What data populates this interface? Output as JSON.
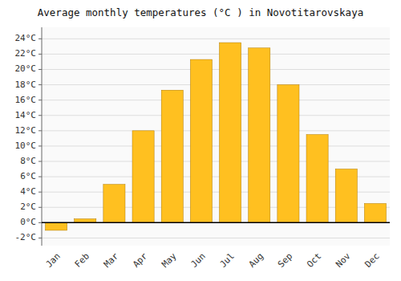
{
  "chart_data": {
    "type": "bar",
    "title": "Average monthly temperatures (°C ) in Novotitarovskaya",
    "categories": [
      "Jan",
      "Feb",
      "Mar",
      "Apr",
      "May",
      "Jun",
      "Jul",
      "Aug",
      "Sep",
      "Oct",
      "Nov",
      "Dec"
    ],
    "values": [
      -1.0,
      0.5,
      5.0,
      12.0,
      17.3,
      21.3,
      23.5,
      22.8,
      18.0,
      11.5,
      7.0,
      2.5
    ],
    "color": "#FFC020",
    "ylim": [
      -3,
      25.5
    ],
    "yticks": [
      {
        "value": -2,
        "label": "-2°C"
      },
      {
        "value": 0,
        "label": "0°C"
      },
      {
        "value": 2,
        "label": "2°C"
      },
      {
        "value": 4,
        "label": "4°C"
      },
      {
        "value": 6,
        "label": "6°C"
      },
      {
        "value": 8,
        "label": "8°C"
      },
      {
        "value": 10,
        "label": "10°C"
      },
      {
        "value": 12,
        "label": "12°C"
      },
      {
        "value": 14,
        "label": "14°C"
      },
      {
        "value": 16,
        "label": "16°C"
      },
      {
        "value": 18,
        "label": "18°C"
      },
      {
        "value": 20,
        "label": "20°C"
      },
      {
        "value": 22,
        "label": "22°C"
      },
      {
        "value": 24,
        "label": "24°C"
      }
    ],
    "grid": true
  }
}
